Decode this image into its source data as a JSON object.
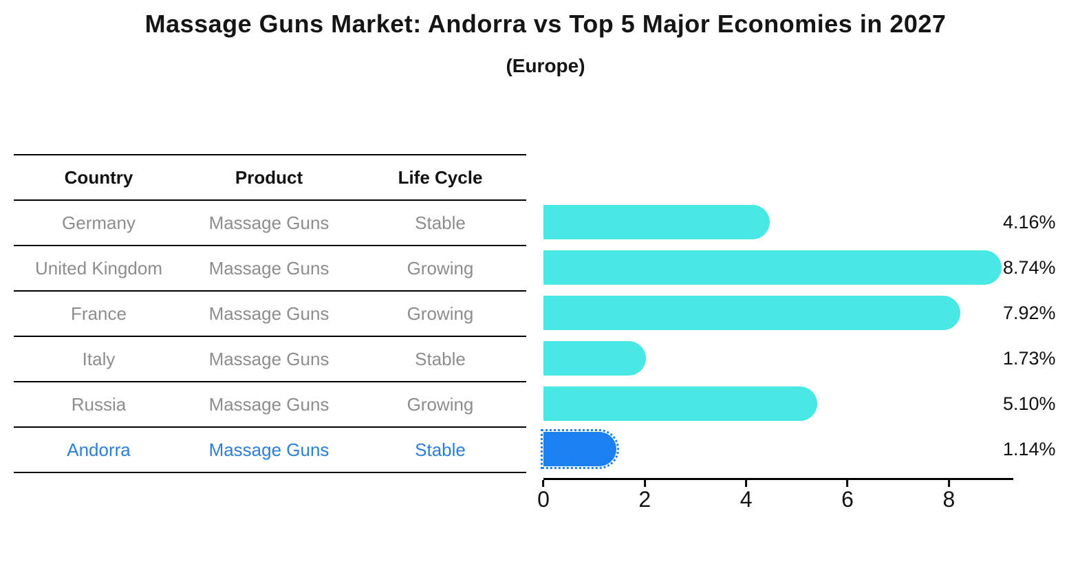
{
  "title": "Massage Guns Market: Andorra vs Top 5 Major Economies in 2027",
  "subtitle": "(Europe)",
  "table": {
    "headers": [
      "Country",
      "Product",
      "Life Cycle"
    ],
    "rows": [
      {
        "country": "Germany",
        "product": "Massage Guns",
        "life_cycle": "Stable",
        "highlight": false
      },
      {
        "country": "United Kingdom",
        "product": "Massage Guns",
        "life_cycle": "Growing",
        "highlight": false
      },
      {
        "country": "France",
        "product": "Massage Guns",
        "life_cycle": "Growing",
        "highlight": false
      },
      {
        "country": "Italy",
        "product": "Massage Guns",
        "life_cycle": "Stable",
        "highlight": false
      },
      {
        "country": "Russia",
        "product": "Massage Guns",
        "life_cycle": "Growing",
        "highlight": false
      },
      {
        "country": "Andorra",
        "product": "Massage Guns",
        "life_cycle": "Stable",
        "highlight": true
      }
    ]
  },
  "chart_data": {
    "type": "bar",
    "orientation": "horizontal",
    "title": "Massage Guns Market: Andorra vs Top 5 Major Economies in 2027 (Europe)",
    "categories": [
      "Germany",
      "United Kingdom",
      "France",
      "Italy",
      "Russia",
      "Andorra"
    ],
    "values": [
      4.16,
      8.74,
      7.92,
      1.73,
      5.1,
      1.14
    ],
    "labels": [
      "4.16%",
      "8.74%",
      "7.92%",
      "1.73%",
      "5.10%",
      "1.14%"
    ],
    "xlabel": "",
    "ylabel": "",
    "xlim": [
      0,
      9.27
    ],
    "x_ticks": [
      0,
      2,
      4,
      6,
      8
    ],
    "grid": false,
    "legend": "none",
    "bar_color": "#48E8E4",
    "highlight_color": "#1B80F0",
    "highlight_text_color": "#2b7fd9",
    "highlight_index": 5,
    "highlight_style": "dotted-outline"
  }
}
